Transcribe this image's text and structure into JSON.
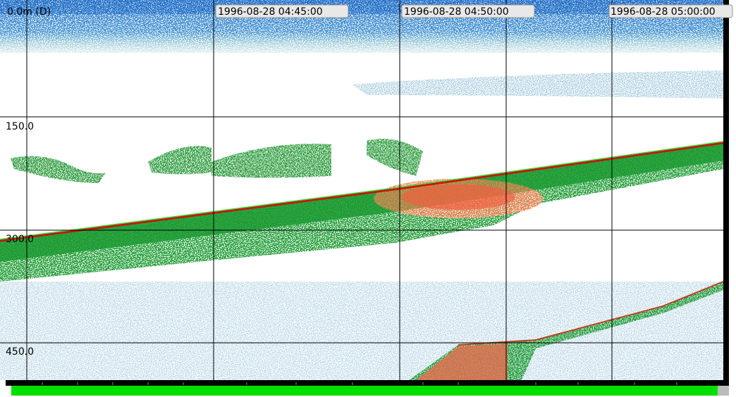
{
  "echogram": {
    "depth_labels": [
      "0.0m (D)",
      "150.0",
      "300.0",
      "450.0"
    ],
    "time_labels": [
      "1996-08-28 04:45:00",
      "1996-08-28 04:50:00",
      "1996-08-28 05:00:00"
    ]
  }
}
